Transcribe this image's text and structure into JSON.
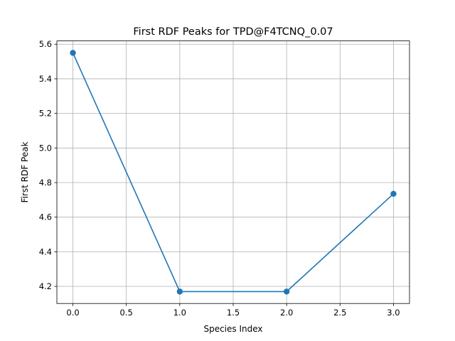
{
  "chart_data": {
    "type": "line",
    "title": "First RDF Peaks for TPD@F4TCNQ_0.07",
    "xlabel": "Species Index",
    "ylabel": "First RDF Peak",
    "x": [
      0,
      1,
      2,
      3
    ],
    "series": [
      {
        "values": [
          5.55,
          4.17,
          4.17,
          4.735
        ]
      }
    ],
    "xlim": [
      -0.15,
      3.15
    ],
    "ylim": [
      4.101,
      5.619
    ],
    "xticks": [
      0.0,
      0.5,
      1.0,
      1.5,
      2.0,
      2.5,
      3.0
    ],
    "xtick_labels": [
      "0.0",
      "0.5",
      "1.0",
      "1.5",
      "2.0",
      "2.5",
      "3.0"
    ],
    "yticks": [
      4.2,
      4.4,
      4.6,
      4.8,
      5.0,
      5.2,
      5.4,
      5.6
    ],
    "ytick_labels": [
      "4.2",
      "4.4",
      "4.6",
      "4.8",
      "5.0",
      "5.2",
      "5.4",
      "5.6"
    ],
    "grid": true,
    "line_color": "#1f77b4",
    "marker": "circle"
  }
}
